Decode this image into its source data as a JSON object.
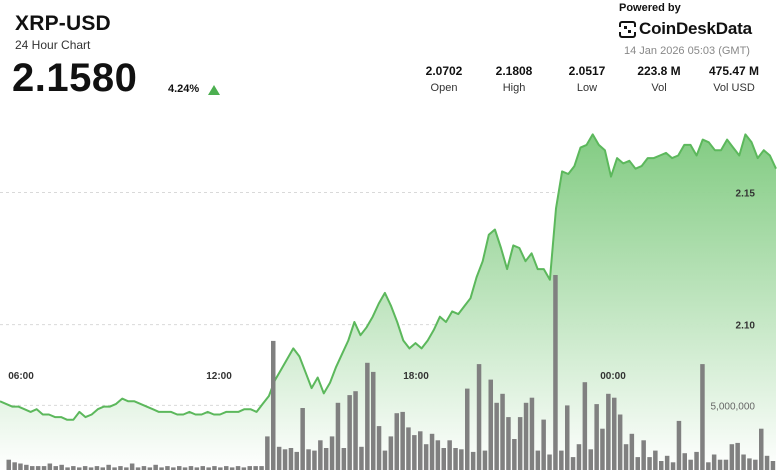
{
  "header": {
    "title": "XRP-USD",
    "subtitle": "24 Hour Chart",
    "price": "2.1580",
    "change": "4.24%",
    "powered_by": "Powered by",
    "brand": "CoinDeskData",
    "timestamp": "14 Jan 2026 05:03 (GMT)"
  },
  "stats": [
    {
      "value": "2.0702",
      "label": "Open"
    },
    {
      "value": "2.1808",
      "label": "High"
    },
    {
      "value": "2.0517",
      "label": "Low"
    },
    {
      "value": "223.8 M",
      "label": "Vol"
    },
    {
      "value": "475.47 M",
      "label": "Vol USD"
    }
  ],
  "colors": {
    "line": "#5cb85c",
    "fill_top": "#7cc97c",
    "fill_bottom": "#ffffff",
    "volume_bar": "#808080",
    "up_arrow": "#4caf50",
    "grid": "#d9d9d9"
  },
  "chart_data": {
    "type": "area",
    "title": "XRP-USD",
    "xlabel": "",
    "ylabel": "",
    "x_ticks": [
      "06:00",
      "12:00",
      "18:00",
      "00:00"
    ],
    "y_ticks": [
      "2.10",
      "2.15"
    ],
    "ylim": [
      2.045,
      2.185
    ],
    "grid": "horizontal dashed",
    "price_series": {
      "name": "",
      "values": [
        2.071,
        2.07,
        2.069,
        2.069,
        2.068,
        2.067,
        2.068,
        2.066,
        2.066,
        2.065,
        2.065,
        2.064,
        2.064,
        2.067,
        2.065,
        2.066,
        2.068,
        2.069,
        2.069,
        2.07,
        2.072,
        2.071,
        2.071,
        2.07,
        2.069,
        2.068,
        2.067,
        2.067,
        2.067,
        2.066,
        2.066,
        2.067,
        2.066,
        2.066,
        2.067,
        2.066,
        2.066,
        2.067,
        2.067,
        2.067,
        2.068,
        2.068,
        2.067,
        2.07,
        2.073,
        2.079,
        2.083,
        2.087,
        2.091,
        2.088,
        2.082,
        2.076,
        2.08,
        2.074,
        2.078,
        2.084,
        2.089,
        2.094,
        2.101,
        2.096,
        2.099,
        2.103,
        2.108,
        2.112,
        2.107,
        2.101,
        2.094,
        2.091,
        2.093,
        2.091,
        2.094,
        2.098,
        2.103,
        2.101,
        2.105,
        2.104,
        2.107,
        2.11,
        2.118,
        2.124,
        2.134,
        2.136,
        2.129,
        2.121,
        2.13,
        2.129,
        2.124,
        2.127,
        2.121,
        2.121,
        2.117,
        2.144,
        2.158,
        2.157,
        2.16,
        2.167,
        2.168,
        2.172,
        2.168,
        2.166,
        2.156,
        2.163,
        2.161,
        2.162,
        2.159,
        2.16,
        2.163,
        2.163,
        2.164,
        2.165,
        2.163,
        2.164,
        2.168,
        2.168,
        2.164,
        2.17,
        2.169,
        2.166,
        2.166,
        2.17,
        2.167,
        2.164,
        2.172,
        2.169,
        2.163,
        2.166,
        2.164,
        2.159
      ]
    },
    "volume_axis_label": "5,000,000",
    "volume_series": {
      "name": "",
      "values": [
        0.0,
        0.8,
        0.6,
        0.5,
        0.4,
        0.3,
        0.3,
        0.3,
        0.5,
        0.3,
        0.4,
        0.2,
        0.3,
        0.2,
        0.3,
        0.2,
        0.3,
        0.2,
        0.4,
        0.2,
        0.3,
        0.2,
        0.5,
        0.2,
        0.3,
        0.2,
        0.4,
        0.2,
        0.3,
        0.2,
        0.3,
        0.2,
        0.3,
        0.2,
        0.3,
        0.2,
        0.3,
        0.2,
        0.3,
        0.2,
        0.3,
        0.2,
        0.3,
        0.3,
        0.3,
        2.6,
        10.0,
        1.8,
        1.6,
        1.7,
        1.4,
        4.8,
        1.6,
        1.5,
        2.3,
        1.7,
        2.6,
        5.2,
        1.7,
        5.8,
        6.1,
        1.8,
        8.3,
        7.6,
        3.4,
        1.5,
        2.6,
        4.4,
        4.5,
        3.3,
        2.7,
        3.0,
        2.0,
        2.8,
        2.3,
        1.7,
        2.3,
        1.7,
        1.6,
        6.3,
        1.4,
        8.2,
        1.5,
        7.0,
        5.2,
        5.9,
        4.1,
        2.4,
        4.1,
        5.2,
        5.6,
        1.5,
        3.9,
        1.2,
        15.1,
        1.5,
        5.0,
        1.0,
        2.0,
        6.8,
        1.6,
        5.1,
        3.2,
        5.9,
        5.6,
        4.3,
        2.0,
        2.8,
        1.0,
        2.3,
        1.0,
        1.5,
        0.7,
        1.1,
        0.6,
        3.8,
        1.3,
        0.8,
        1.4,
        8.2,
        0.6,
        1.2,
        0.8,
        0.8,
        2.0,
        2.1,
        1.2,
        0.9,
        0.8,
        3.2,
        1.1,
        0.7
      ]
    }
  }
}
